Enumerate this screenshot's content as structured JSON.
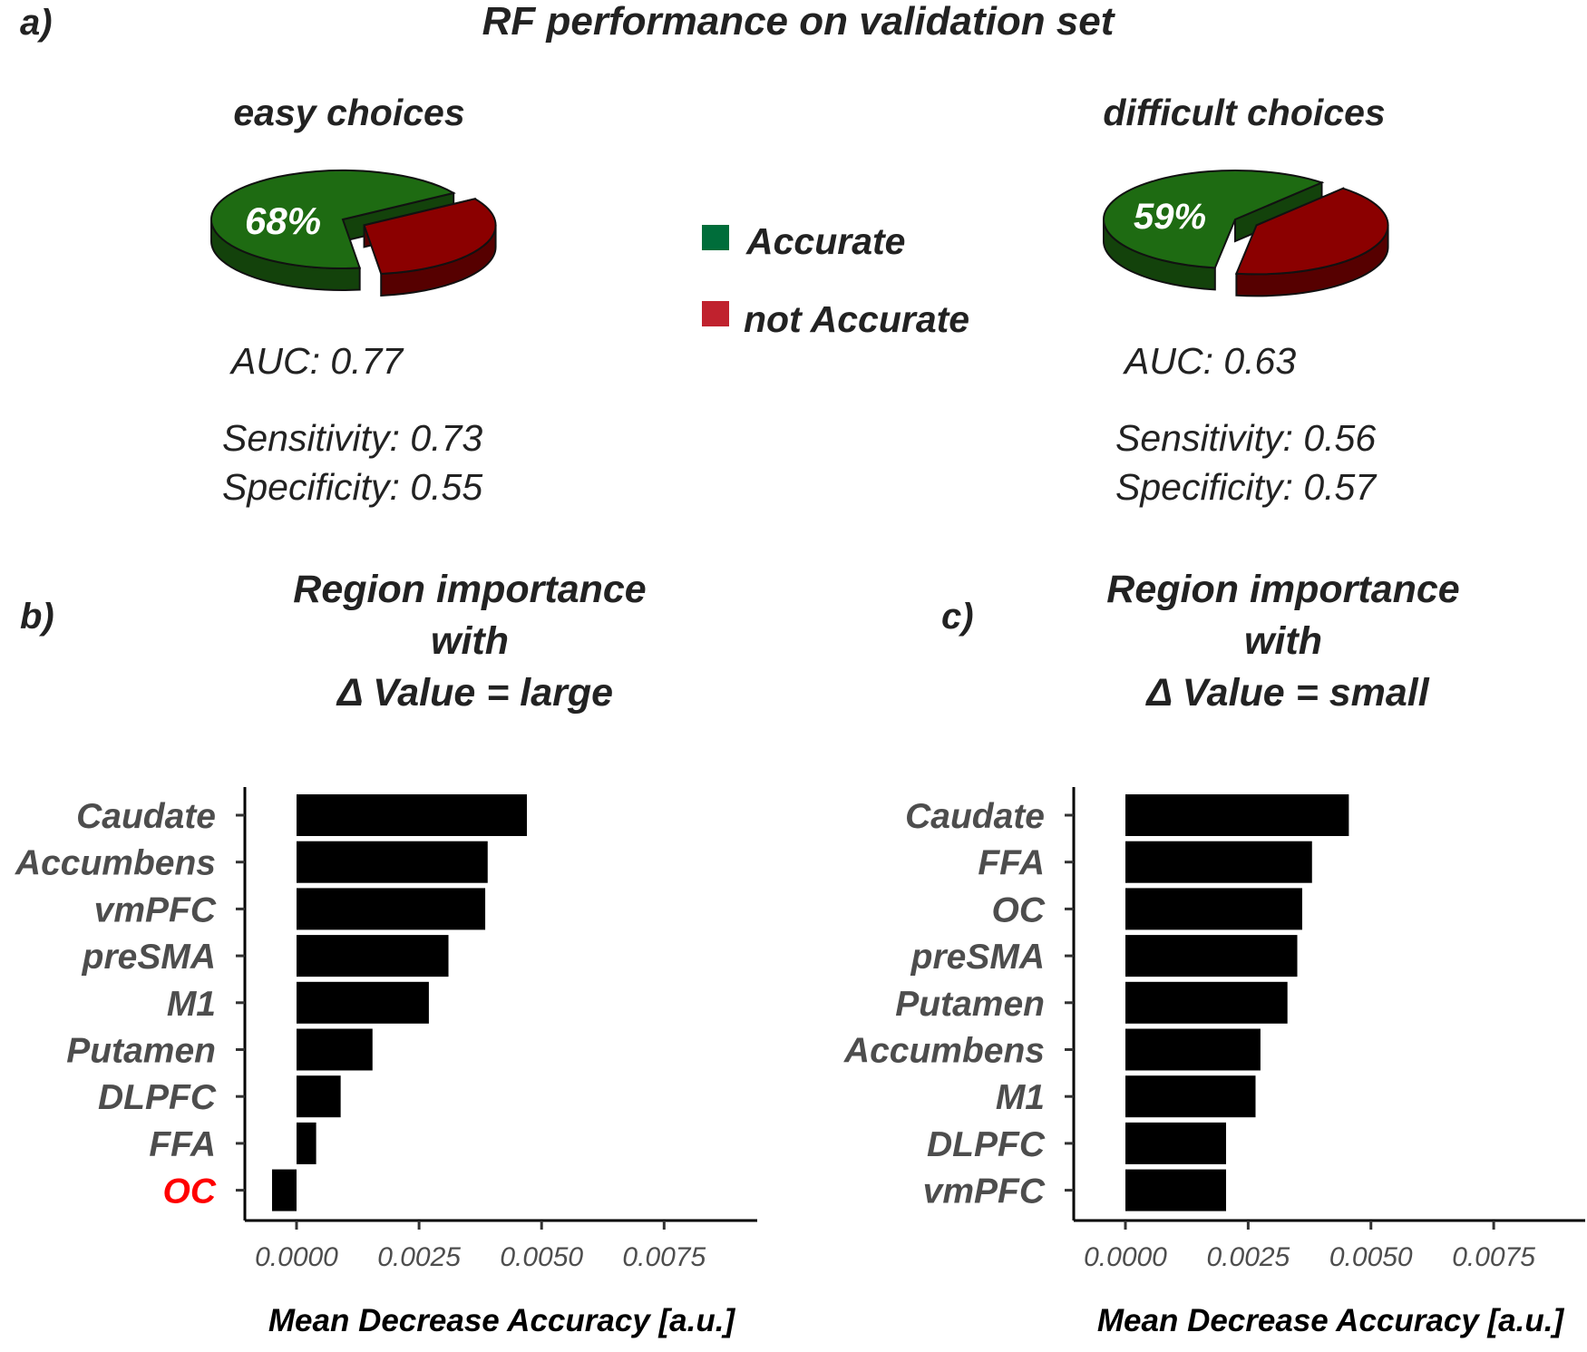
{
  "panel_labels": {
    "a": "a)",
    "b": "b)",
    "c": "c)"
  },
  "main_title": "RF performance on validation set",
  "legend": [
    {
      "label": "Accurate",
      "color": "#006d3a"
    },
    {
      "label": "not Accurate",
      "color": "#c0222e"
    }
  ],
  "pies": [
    {
      "title": "easy choices",
      "pct_label": "68%",
      "auc": "AUC: 0.77",
      "sensitivity": "Sensitivity: 0.73",
      "specificity": "Specificity: 0.55"
    },
    {
      "title": "difficult choices",
      "pct_label": "59%",
      "auc": "AUC: 0.63",
      "sensitivity": "Sensitivity: 0.56",
      "specificity": "Specificity: 0.57"
    }
  ],
  "bar_titles": [
    [
      "Region importance",
      "with",
      "Δ Value = large"
    ],
    [
      "Region importance",
      "with",
      "Δ Value = small"
    ]
  ],
  "chart_data": [
    {
      "type": "pie",
      "title": "easy choices",
      "categories": [
        "Accurate",
        "not Accurate"
      ],
      "values": [
        68,
        32
      ],
      "colors": [
        "#1e6b12",
        "#8b0000"
      ]
    },
    {
      "type": "pie",
      "title": "difficult choices",
      "categories": [
        "Accurate",
        "not Accurate"
      ],
      "values": [
        59,
        41
      ],
      "colors": [
        "#1e6b12",
        "#8b0000"
      ]
    },
    {
      "type": "bar",
      "orientation": "horizontal",
      "title": "Region importance with Δ Value = large",
      "xlabel": "Mean Decrease Accuracy [a.u.]",
      "categories": [
        "Caudate",
        "Accumbens",
        "vmPFC",
        "preSMA",
        "M1",
        "Putamen",
        "DLPFC",
        "FFA",
        "OC"
      ],
      "values": [
        0.0047,
        0.0039,
        0.00385,
        0.0031,
        0.0027,
        0.00155,
        0.0009,
        0.0004,
        -0.0005
      ],
      "highlight": {
        "OC": "#ff0000"
      },
      "xticks": [
        "0.0000",
        "0.0025",
        "0.0050",
        "0.0075"
      ],
      "xtick_values": [
        0,
        0.0025,
        0.005,
        0.0075
      ],
      "xlim": [
        -0.00105,
        0.0094
      ]
    },
    {
      "type": "bar",
      "orientation": "horizontal",
      "title": "Region importance with Δ Value = small",
      "xlabel": "Mean Decrease Accuracy [a.u.]",
      "categories": [
        "Caudate",
        "FFA",
        "OC",
        "preSMA",
        "Putamen",
        "Accumbens",
        "M1",
        "DLPFC",
        "vmPFC"
      ],
      "values": [
        0.00455,
        0.0038,
        0.0036,
        0.0035,
        0.0033,
        0.00275,
        0.00265,
        0.00205,
        0.00205
      ],
      "xticks": [
        "0.0000",
        "0.0025",
        "0.0050",
        "0.0075"
      ],
      "xtick_values": [
        0,
        0.0025,
        0.005,
        0.0075
      ],
      "xlim": [
        -0.00105,
        0.0094
      ]
    }
  ]
}
